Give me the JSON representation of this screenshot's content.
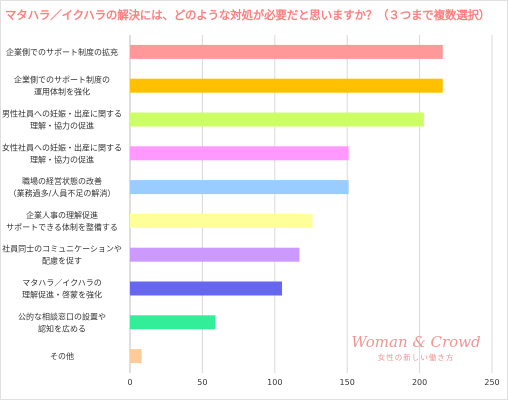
{
  "chart_data": {
    "type": "bar",
    "orientation": "horizontal",
    "title": "マタハラ／イクハラの解決には、どのような対処が必要だと思いますか？（３つまで複数選択）",
    "categories": [
      [
        "企業側でのサポート制度の拡充"
      ],
      [
        "企業側でのサポート制度の",
        "運用体制を強化"
      ],
      [
        "男性社員への妊娠・出産に関する",
        "理解・協力の促進"
      ],
      [
        "女性社員への妊娠・出産に関する",
        "理解・協力の促進"
      ],
      [
        "職場の経営状態の改善",
        "（業務過多/人員不足の解消）"
      ],
      [
        "企業人事の理解促進",
        "サポートできる体制を整備する"
      ],
      [
        "社員同士のコミュニケーションや",
        "配慮を促す"
      ],
      [
        "マタハラ／イクハラの",
        "理解促進・啓蒙を強化"
      ],
      [
        "公的な相談窓口の設置や",
        "認知を広める"
      ],
      [
        "その他"
      ]
    ],
    "values": [
      216,
      216,
      203,
      151,
      151,
      126,
      117,
      105,
      59,
      8
    ],
    "colors": [
      "#ff9999",
      "#ffc000",
      "#ccff66",
      "#ff99ff",
      "#99ccff",
      "#ffff99",
      "#cc99ff",
      "#6666ee",
      "#33ee99",
      "#ffcc99"
    ],
    "xlim": [
      0,
      250
    ],
    "xticks": [
      0,
      50,
      100,
      150,
      200,
      250
    ],
    "grid": "vertical"
  },
  "watermark": {
    "main": "Woman & Crowd",
    "sub": "女性の新しい働き方"
  }
}
